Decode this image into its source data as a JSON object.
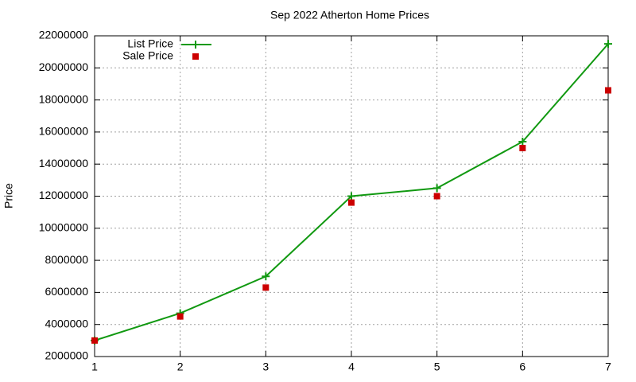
{
  "chart_data": {
    "type": "line",
    "title": "Sep 2022 Atherton Home Prices",
    "y_label": "Price",
    "x": [
      1,
      2,
      3,
      4,
      5,
      6,
      7
    ],
    "series": [
      {
        "name": "List Price",
        "color": "#119911",
        "style": "linespoints",
        "marker": "plus",
        "values": [
          3000000,
          4700000,
          7000000,
          12000000,
          12500000,
          15400000,
          21500000
        ]
      },
      {
        "name": "Sale Price",
        "color": "#cc0000",
        "style": "points",
        "marker": "square",
        "values": [
          3000000,
          4500000,
          6300000,
          11600000,
          12000000,
          15000000,
          18600000
        ]
      }
    ],
    "xlim": [
      1,
      7
    ],
    "xticks": [
      1,
      2,
      3,
      4,
      5,
      6,
      7
    ],
    "ylim": [
      2000000,
      22000000
    ],
    "yticks": [
      2000000,
      4000000,
      6000000,
      8000000,
      10000000,
      12000000,
      14000000,
      16000000,
      18000000,
      20000000,
      22000000
    ],
    "grid": true,
    "legend": "top-left"
  }
}
